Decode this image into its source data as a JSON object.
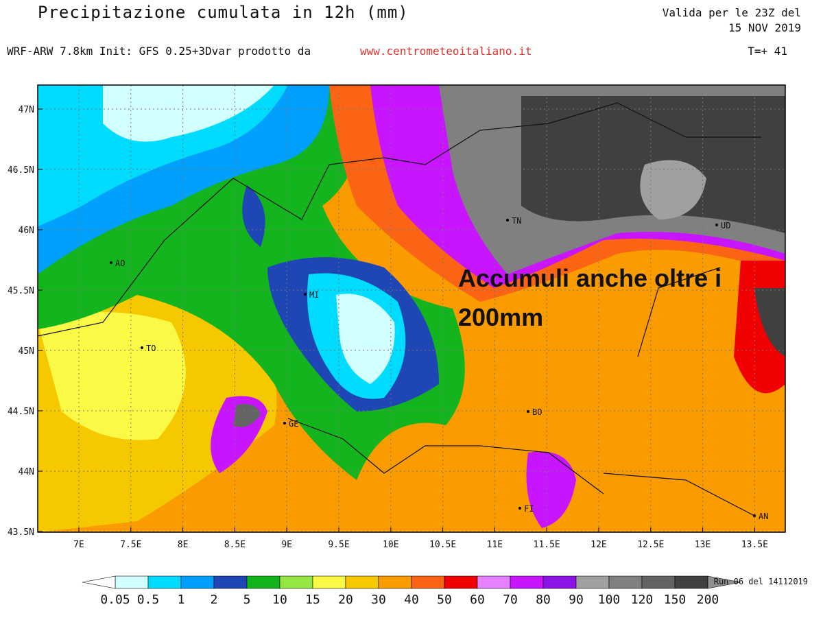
{
  "header": {
    "title": "Precipitazione cumulata in 12h (mm)",
    "valid": [
      "Valida per le 23Z del",
      "15 NOV 2019"
    ],
    "model": "WRF-ARW 7.8km Init: GFS 0.25+3Dvar prodotto da",
    "website": "www.centrometeoitaliano.it",
    "forecast_step": "T=+ 41"
  },
  "map": {
    "lat_ticks": [
      "47N",
      "46.5N",
      "46N",
      "45.5N",
      "45N",
      "44.5N",
      "44N",
      "43.5N"
    ],
    "lon_ticks": [
      "7E",
      "7.5E",
      "8E",
      "8.5E",
      "9E",
      "9.5E",
      "10E",
      "10.5E",
      "11E",
      "11.5E",
      "12E",
      "12.5E",
      "13E",
      "13.5E"
    ],
    "cities": [
      "AO",
      "MI",
      "TO",
      "GE",
      "BO",
      "FI",
      "TN",
      "UD",
      "AN"
    ],
    "annotation": [
      "Accumuli anche oltre i",
      "200mm"
    ]
  },
  "legend": {
    "labels": [
      "0.05",
      "0.5",
      "1",
      "2",
      "5",
      "10",
      "15",
      "20",
      "30",
      "40",
      "50",
      "60",
      "70",
      "80",
      "90",
      "100",
      "120",
      "150",
      "200"
    ],
    "colors": [
      "#d2ffff",
      "#00dcff",
      "#00a0ff",
      "#1e46b4",
      "#14b41e",
      "#96e646",
      "#fafa46",
      "#f5c800",
      "#fa9b00",
      "#fa6414",
      "#f00000",
      "#e682ff",
      "#c814ff",
      "#8c14e6",
      "#a0a0a0",
      "#808080",
      "#646464",
      "#404040"
    ],
    "run": "Run 06 del 14112019"
  }
}
